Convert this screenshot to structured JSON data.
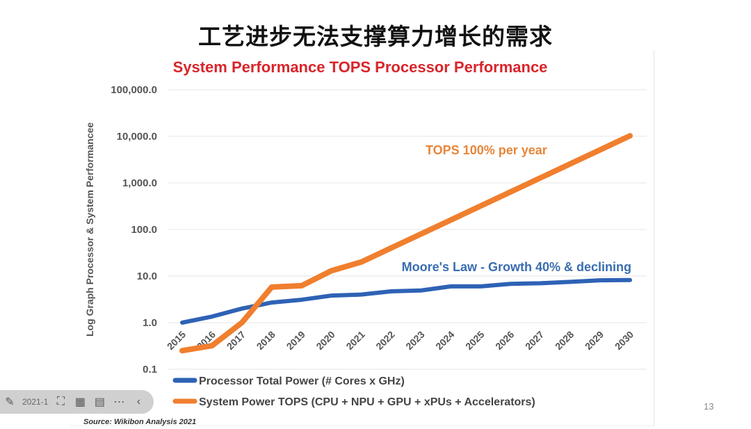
{
  "slide": {
    "title": "工艺进步无法支撑算力增长的需求",
    "page_number": "13"
  },
  "toolbar": {
    "date_partial": "2021-1",
    "icons": [
      "pen-icon",
      "screenshot-icon",
      "film-icon",
      "comment-icon",
      "more-icon",
      "chevron-left-icon"
    ]
  },
  "chart_data": {
    "type": "line",
    "title": "System Performance TOPS Processor Performance",
    "ylabel": "Log Graph Processor & System Performancee",
    "xlabel": "",
    "yscale": "log",
    "ylim": [
      0.1,
      100000
    ],
    "ytick_labels": [
      "0.1",
      "1.0",
      "10.0",
      "100.0",
      "1,000.0",
      "10,000.0",
      "100,000.0"
    ],
    "ytick_values": [
      0.1,
      1,
      10,
      100,
      1000,
      10000,
      100000
    ],
    "categories": [
      "2015",
      "2016",
      "2017",
      "2018",
      "2019",
      "2020",
      "2021",
      "2022",
      "2023",
      "2024",
      "2025",
      "2026",
      "2027",
      "2028",
      "2029",
      "2030"
    ],
    "series": [
      {
        "name": "Processor Total Power (# Cores x GHz)",
        "color": "#2e62b5",
        "values": [
          1.0,
          1.35,
          2.0,
          2.7,
          3.1,
          3.8,
          4.0,
          4.7,
          4.9,
          6.0,
          6.0,
          6.8,
          7.0,
          7.5,
          8.1,
          8.2
        ]
      },
      {
        "name": "System Power TOPS (CPU + NPU + GPU + xPUs + Accelerators)",
        "color": "#f07f2e",
        "values": [
          0.25,
          0.32,
          1.0,
          5.8,
          6.2,
          13,
          20,
          40,
          80,
          160,
          320,
          640,
          1280,
          2560,
          5120,
          10240
        ]
      }
    ],
    "annotations": [
      {
        "text": "TOPS 100% per year",
        "color": "#e8863a"
      },
      {
        "text": "Moore's Law - Growth 40% & declining",
        "color": "#3a6db0"
      }
    ],
    "source": "Source: Wikibon Analysis 2021",
    "grid": true,
    "legend_placement": "bottom"
  }
}
